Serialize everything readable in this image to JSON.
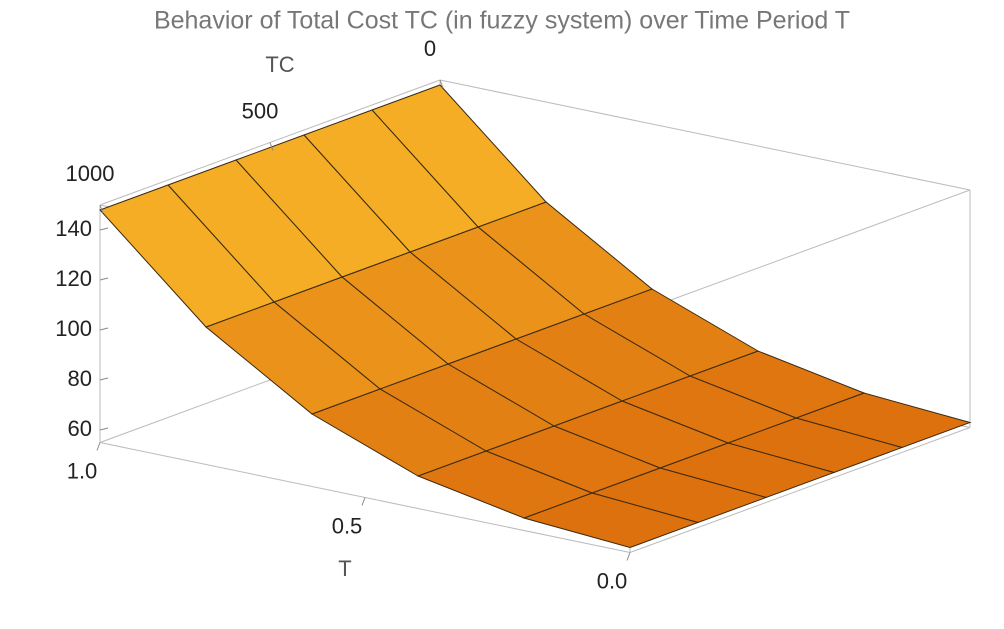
{
  "chart_data": {
    "type": "surface",
    "title": "Behavior of Total Cost TC (in fuzzy system) over Time Period T",
    "x_label": "T",
    "y_label": "TC",
    "x": [
      0,
      0.2,
      0.4,
      0.6,
      0.8,
      1.0
    ],
    "xlim": [
      0,
      1
    ],
    "xticks": [
      {
        "value": 0,
        "label": "0.0"
      },
      {
        "value": 0.5,
        "label": "0.5"
      },
      {
        "value": 1,
        "label": "1.0"
      }
    ],
    "y": [
      0,
      200,
      400,
      600,
      800,
      1000
    ],
    "ylim": [
      0,
      1000
    ],
    "yticks": [
      0,
      500,
      1000
    ],
    "zlim": [
      55,
      150
    ],
    "zticks": [
      60,
      80,
      100,
      120,
      140
    ],
    "z": [
      [
        57,
        60,
        68,
        84,
        110,
        148
      ],
      [
        57,
        60,
        68,
        84,
        110,
        148
      ],
      [
        57,
        60,
        68,
        84,
        110,
        148
      ],
      [
        57,
        60,
        68,
        84,
        110,
        148
      ],
      [
        57,
        60,
        68,
        84,
        110,
        148
      ],
      [
        57,
        60,
        68,
        84,
        110,
        148
      ]
    ],
    "colors": [
      "#dc6e0c",
      "#fbbf2c"
    ]
  }
}
